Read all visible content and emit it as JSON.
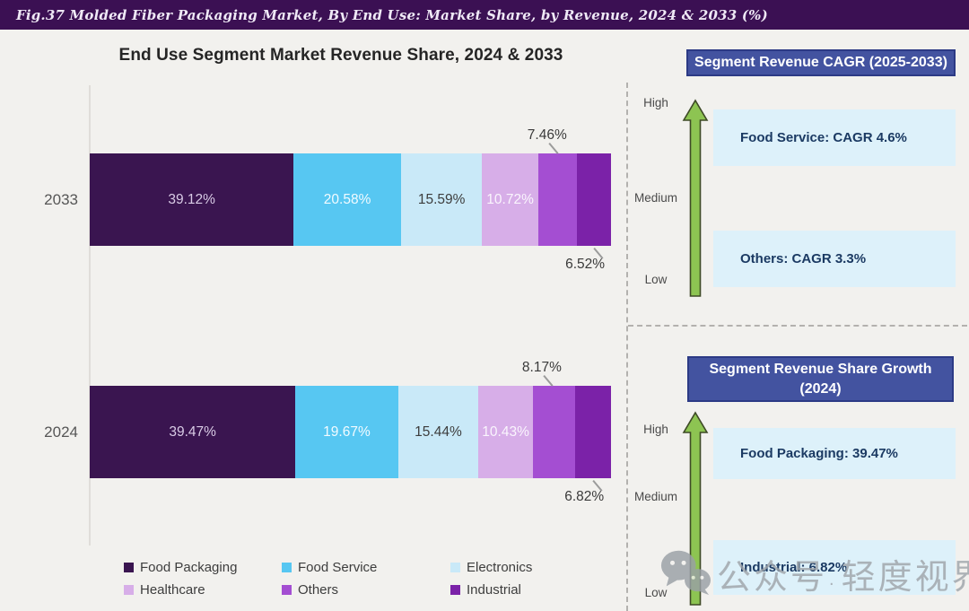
{
  "figure_header": {
    "text": "Fig.37  Molded Fiber Packaging Market, By End Use: Market Share, by Revenue, 2024 & 2033 (%)"
  },
  "chart_data": {
    "type": "bar",
    "subtype": "horizontal-stacked",
    "title": "End Use Segment Market Revenue Share, 2024 & 2033",
    "categories": [
      "2033",
      "2024"
    ],
    "series": [
      {
        "name": "Food Packaging",
        "color": "#3a1550",
        "values": [
          39.12,
          39.47
        ]
      },
      {
        "name": "Food Service",
        "color": "#57c7f2",
        "values": [
          20.58,
          19.67
        ]
      },
      {
        "name": "Electronics",
        "color": "#c9e9f8",
        "values": [
          15.59,
          15.44
        ]
      },
      {
        "name": "Healthcare",
        "color": "#d7aee8",
        "values": [
          10.72,
          10.43
        ]
      },
      {
        "name": "Others",
        "color": "#a44ed2",
        "values": [
          7.46,
          8.17
        ]
      },
      {
        "name": "Industrial",
        "color": "#7b22a8",
        "values": [
          6.52,
          6.82
        ]
      }
    ],
    "value_format": "percent",
    "legend_position": "bottom",
    "xlim": [
      0,
      100
    ],
    "grid": false
  },
  "right_panels": {
    "cagr": {
      "header": "Segment Revenue CAGR (2025-2033)",
      "scale_labels": [
        "High",
        "Medium",
        "Low"
      ],
      "boxes": [
        "Food Service: CAGR 4.6%",
        "Others: CAGR 3.3%"
      ]
    },
    "growth": {
      "header_line1": "Segment Revenue Share Growth",
      "header_line2": "(2024)",
      "scale_labels": [
        "High",
        "Medium",
        "Low"
      ],
      "boxes": [
        "Food Packaging: 39.47%",
        "Industrial: 6.82%"
      ]
    }
  },
  "watermark": {
    "icon": "wechat-icon",
    "account_label": "公众号",
    "name": "轻度视界"
  },
  "colors": {
    "band_bg": "#3b1053",
    "panel_header_bg": "#4353a0",
    "info_box_bg": "#ddf1fa",
    "arrow_green": "#8dc452",
    "background": "#f2f1ee"
  }
}
